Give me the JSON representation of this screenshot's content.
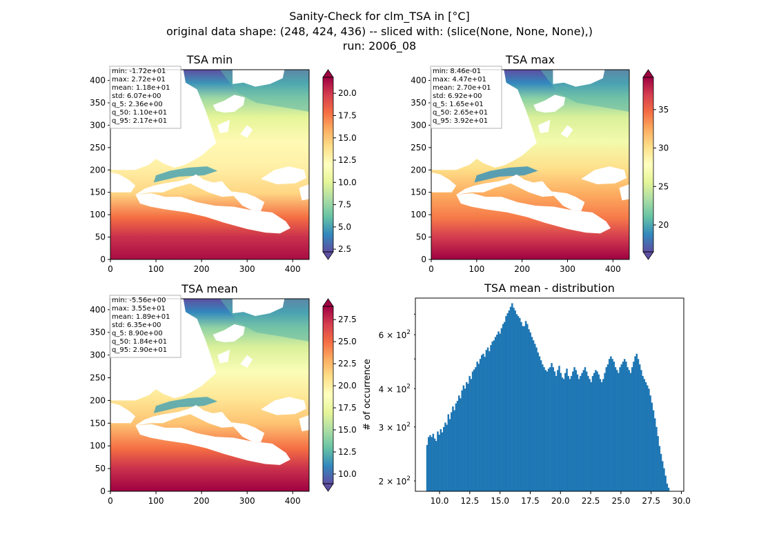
{
  "figure": {
    "title_lines": [
      "Sanity-Check for clm_TSA in [°C]",
      "original data shape: (248, 424, 436) -- sliced with: (slice(None, None, None),)",
      "run: 2006_08"
    ]
  },
  "chart_data": [
    {
      "type": "heatmap",
      "title": "TSA min",
      "xlim": [
        0,
        436
      ],
      "ylim": [
        0,
        424
      ],
      "xticks": [
        "0",
        "100",
        "200",
        "300",
        "400"
      ],
      "yticks": [
        "0",
        "50",
        "100",
        "150",
        "200",
        "250",
        "300",
        "350",
        "400"
      ],
      "colormap": "Spectral_r",
      "colorbar": {
        "range": [
          2.2,
          21.8
        ],
        "ticks": [
          "2.5",
          "5.0",
          "7.5",
          "10.0",
          "12.5",
          "15.0",
          "17.5",
          "20.0"
        ],
        "extend": "both"
      },
      "stats": [
        "min: -1.72e+01",
        "max: 2.72e+01",
        "mean: 1.18e+01",
        "std: 6.07e+00",
        "q_5: 2.36e+00",
        "q_50: 1.10e+01",
        "q_95: 2.17e+01"
      ]
    },
    {
      "type": "heatmap",
      "title": "TSA max",
      "xlim": [
        0,
        436
      ],
      "ylim": [
        0,
        424
      ],
      "xticks": [
        "0",
        "100",
        "200",
        "300",
        "400"
      ],
      "yticks": [
        "0",
        "50",
        "100",
        "150",
        "200",
        "250",
        "300",
        "350",
        "400"
      ],
      "colormap": "Spectral_r",
      "colorbar": {
        "range": [
          16.5,
          39.2
        ],
        "ticks": [
          "20",
          "25",
          "30",
          "35"
        ],
        "extend": "both"
      },
      "stats": [
        "min: 8.46e-01",
        "max: 4.47e+01",
        "mean: 2.70e+01",
        "std: 6.92e+00",
        "q_5: 1.65e+01",
        "q_50: 2.65e+01",
        "q_95: 3.92e+01"
      ]
    },
    {
      "type": "heatmap",
      "title": "TSA mean",
      "xlim": [
        0,
        436
      ],
      "ylim": [
        0,
        424
      ],
      "xticks": [
        "0",
        "100",
        "200",
        "300",
        "400"
      ],
      "yticks": [
        "0",
        "50",
        "100",
        "150",
        "200",
        "250",
        "300",
        "350",
        "400"
      ],
      "colormap": "Spectral_r",
      "colorbar": {
        "range": [
          8.9,
          29.0
        ],
        "ticks": [
          "10.0",
          "12.5",
          "15.0",
          "17.5",
          "20.0",
          "22.5",
          "25.0",
          "27.5"
        ],
        "extend": "both"
      },
      "stats": [
        "min: -5.56e+00",
        "max: 3.55e+01",
        "mean: 1.89e+01",
        "std: 6.35e+00",
        "q_5: 8.90e+00",
        "q_50: 1.84e+01",
        "q_95: 2.90e+01"
      ]
    },
    {
      "type": "bar",
      "title": "TSA mean - distribution",
      "xlabel": "",
      "ylabel": "# of occurrence",
      "xlim": [
        8.0,
        30.2
      ],
      "ylim": [
        185,
        790
      ],
      "yscale": "log",
      "xticks": [
        "10.0",
        "12.5",
        "15.0",
        "17.5",
        "20.0",
        "22.5",
        "25.0",
        "27.5",
        "30.0"
      ],
      "yticks": [
        {
          "value": 200,
          "mantissa": "2",
          "exponent": "2"
        },
        {
          "value": 300,
          "mantissa": "3",
          "exponent": "2"
        },
        {
          "value": 400,
          "mantissa": "4",
          "exponent": "2"
        },
        {
          "value": 600,
          "mantissa": "6",
          "exponent": "2"
        }
      ],
      "bin_range": [
        8.9,
        29.0
      ],
      "bar_color": "#1f77b4",
      "values": [
        262,
        278,
        282,
        278,
        285,
        275,
        270,
        290,
        283,
        295,
        288,
        300,
        310,
        305,
        330,
        318,
        335,
        350,
        340,
        358,
        365,
        380,
        372,
        395,
        410,
        400,
        420,
        415,
        440,
        430,
        455,
        462,
        470,
        490,
        482,
        500,
        515,
        520,
        508,
        535,
        545,
        530,
        555,
        570,
        575,
        590,
        600,
        615,
        605,
        630,
        650,
        660,
        690,
        705,
        720,
        740,
        760,
        735,
        720,
        700,
        690,
        680,
        660,
        640,
        640,
        665,
        650,
        625,
        610,
        590,
        575,
        560,
        545,
        525,
        510,
        495,
        480,
        470,
        460,
        455,
        465,
        470,
        485,
        470,
        455,
        440,
        460,
        475,
        450,
        435,
        430,
        450,
        465,
        440,
        430,
        440,
        455,
        470,
        460,
        445,
        430,
        440,
        450,
        460,
        470,
        455,
        440,
        430,
        420,
        440,
        450,
        460,
        455,
        445,
        430,
        420,
        430,
        450,
        470,
        480,
        500,
        510,
        500,
        490,
        470,
        460,
        450,
        470,
        480,
        490,
        500,
        490,
        470,
        460,
        450,
        470,
        490,
        510,
        520,
        500,
        480,
        460,
        440,
        430,
        420,
        410,
        400,
        380,
        360,
        340,
        320,
        300,
        280,
        260,
        245,
        232,
        220,
        208,
        196,
        190
      ]
    }
  ]
}
